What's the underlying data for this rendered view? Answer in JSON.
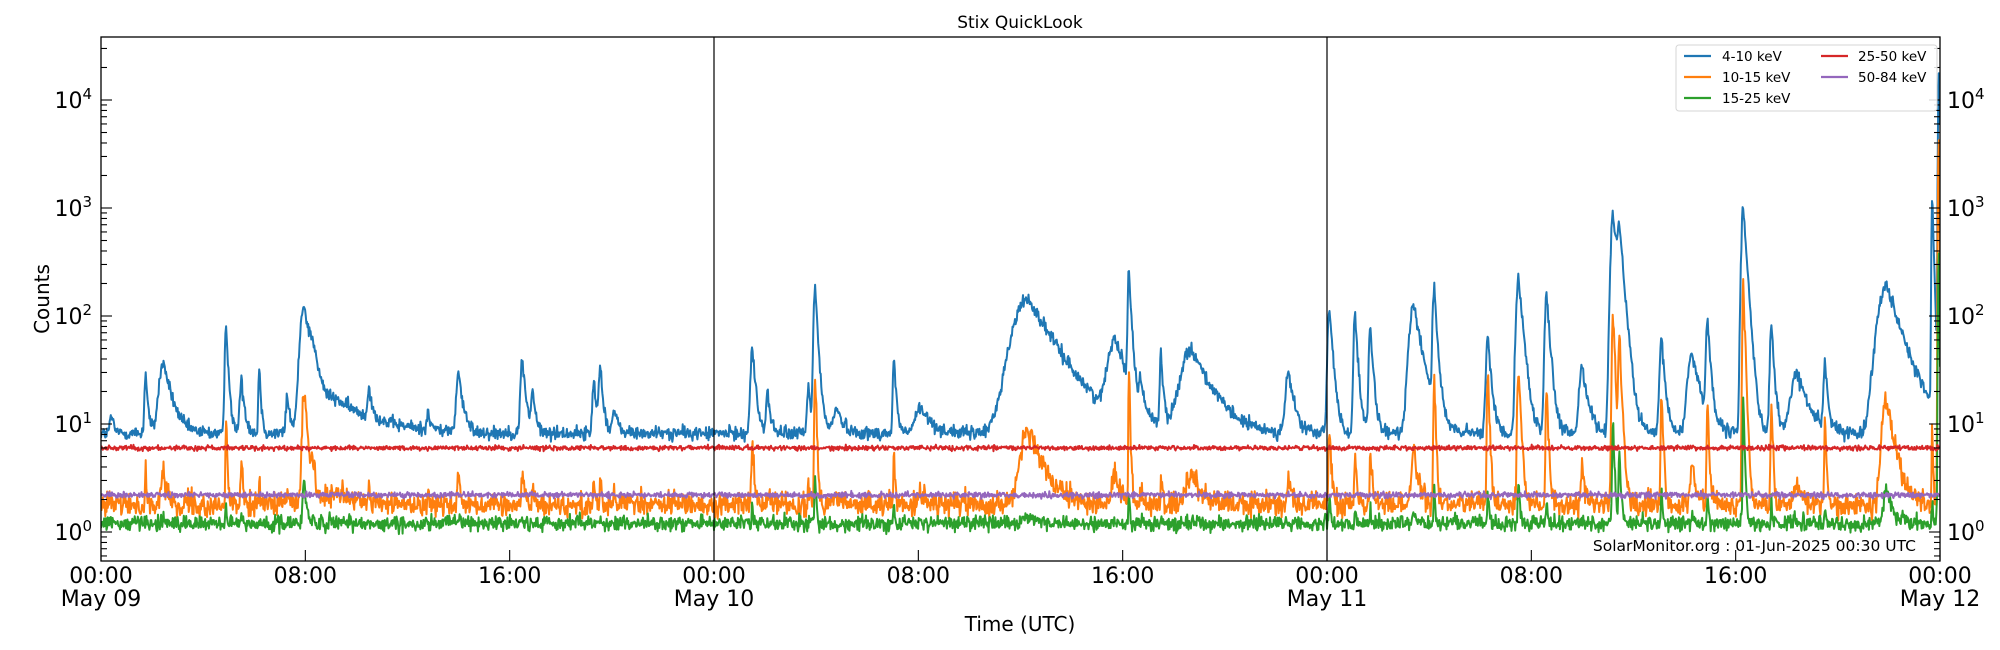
{
  "chart_data": {
    "type": "line",
    "title": "Stix QuickLook",
    "xlabel": "Time (UTC)",
    "ylabel": "Counts",
    "yscale": "log",
    "ylim": [
      0.54,
      38000
    ],
    "xlim_hours": [
      0,
      72
    ],
    "x_start": "May 09 00:00",
    "annotation": "SolarMonitor.org : 01-Jun-2025 00:30 UTC",
    "legend_position": "top-right",
    "xticks": [
      {
        "hour": 0,
        "time": "00:00",
        "date": "May 09"
      },
      {
        "hour": 8,
        "time": "08:00",
        "date": ""
      },
      {
        "hour": 16,
        "time": "16:00",
        "date": ""
      },
      {
        "hour": 24,
        "time": "00:00",
        "date": "May 10"
      },
      {
        "hour": 32,
        "time": "08:00",
        "date": ""
      },
      {
        "hour": 40,
        "time": "16:00",
        "date": ""
      },
      {
        "hour": 48,
        "time": "00:00",
        "date": "May 11"
      },
      {
        "hour": 56,
        "time": "08:00",
        "date": ""
      },
      {
        "hour": 64,
        "time": "16:00",
        "date": ""
      },
      {
        "hour": 72,
        "time": "00:00",
        "date": "May 12"
      }
    ],
    "day_boundaries_hours": [
      24,
      48
    ],
    "yticks": [
      {
        "value": 1,
        "base": "10",
        "exp": "0"
      },
      {
        "value": 10,
        "base": "10",
        "exp": "1"
      },
      {
        "value": 100,
        "base": "10",
        "exp": "2"
      },
      {
        "value": 1000,
        "base": "10",
        "exp": "3"
      },
      {
        "value": 10000,
        "base": "10",
        "exp": "4"
      }
    ],
    "series": [
      {
        "key": "b",
        "name": "4-10 keV",
        "color": "#1f77b4",
        "baseline": 8.2,
        "noise": 0.07
      },
      {
        "key": "o",
        "name": "10-15 keV",
        "color": "#ff7f0e",
        "baseline": 1.8,
        "noise": 0.12
      },
      {
        "key": "g",
        "name": "15-25 keV",
        "color": "#2ca02c",
        "baseline": 1.2,
        "noise": 0.08
      },
      {
        "key": "r",
        "name": "25-50 keV",
        "color": "#d62728",
        "baseline": 6.0,
        "noise": 0.025
      },
      {
        "key": "p",
        "name": "50-84 keV",
        "color": "#9467bd",
        "baseline": 2.2,
        "noise": 0.03
      }
    ],
    "events": [
      {
        "t": 0.4,
        "w": 0.1,
        "b": 12,
        "o": 2.2,
        "g": 1.2
      },
      {
        "t": 1.75,
        "w": 0.08,
        "b": 30,
        "o": 4,
        "g": 1.3
      },
      {
        "t": 2.45,
        "w": 0.3,
        "b": 37,
        "o": 3.5,
        "g": 1.3
      },
      {
        "t": 4.9,
        "w": 0.08,
        "b": 85,
        "o": 10,
        "g": 1.8
      },
      {
        "t": 5.5,
        "w": 0.12,
        "b": 25,
        "o": 5,
        "g": 1.5
      },
      {
        "t": 6.2,
        "w": 0.06,
        "b": 35,
        "o": 3.3,
        "g": 1.2
      },
      {
        "t": 7.3,
        "w": 0.1,
        "b": 18,
        "o": 2.6,
        "g": 1.2
      },
      {
        "t": 7.95,
        "w": 0.25,
        "b": 130,
        "o": 20,
        "g": 3
      },
      {
        "t": 8.3,
        "w": 0.2,
        "b": 28,
        "o": 3.5,
        "g": 1.3
      },
      {
        "t": 9.3,
        "w": 1.5,
        "b": 16,
        "o": 2.2,
        "g": 1.2
      },
      {
        "t": 10.5,
        "w": 0.1,
        "b": 20,
        "o": 2.6,
        "g": 1.2
      },
      {
        "t": 12.8,
        "w": 0.1,
        "b": 12,
        "o": 2.2,
        "g": 1.2
      },
      {
        "t": 14.0,
        "w": 0.15,
        "b": 30,
        "o": 3.5,
        "g": 1.3
      },
      {
        "t": 16.5,
        "w": 0.12,
        "b": 40,
        "o": 4,
        "g": 1.3
      },
      {
        "t": 16.9,
        "w": 0.1,
        "b": 20,
        "o": 2.8,
        "g": 1.2
      },
      {
        "t": 19.3,
        "w": 0.1,
        "b": 25,
        "o": 3,
        "g": 1.2
      },
      {
        "t": 19.55,
        "w": 0.1,
        "b": 35,
        "o": 3.2,
        "g": 1.3
      },
      {
        "t": 20.1,
        "w": 0.15,
        "b": 13,
        "o": 2.2,
        "g": 1.2
      },
      {
        "t": 25.5,
        "w": 0.12,
        "b": 50,
        "o": 7,
        "g": 1.8
      },
      {
        "t": 26.1,
        "w": 0.1,
        "b": 20,
        "o": 2.5,
        "g": 1.2
      },
      {
        "t": 27.7,
        "w": 0.1,
        "b": 22,
        "o": 3,
        "g": 1.3
      },
      {
        "t": 27.96,
        "w": 0.1,
        "b": 180,
        "o": 30,
        "g": 3.5
      },
      {
        "t": 28.8,
        "w": 0.25,
        "b": 14,
        "o": 2.3,
        "g": 1.2
      },
      {
        "t": 31.05,
        "w": 0.08,
        "b": 40,
        "o": 5,
        "g": 2
      },
      {
        "t": 32.1,
        "w": 0.4,
        "b": 14,
        "o": 2.3,
        "g": 1.2
      },
      {
        "t": 36.3,
        "w": 1.0,
        "b": 145,
        "o": 9,
        "g": 1.4
      },
      {
        "t": 39.7,
        "w": 0.45,
        "b": 60,
        "o": 3.5,
        "g": 1.3
      },
      {
        "t": 40.25,
        "w": 0.08,
        "b": 260,
        "o": 30,
        "g": 2.5
      },
      {
        "t": 40.7,
        "w": 0.1,
        "b": 20,
        "o": 2.5,
        "g": 1.2
      },
      {
        "t": 41.5,
        "w": 0.08,
        "b": 45,
        "o": 3,
        "g": 1.2
      },
      {
        "t": 42.7,
        "w": 0.7,
        "b": 50,
        "o": 3.5,
        "g": 1.3
      },
      {
        "t": 46.5,
        "w": 0.2,
        "b": 30,
        "o": 3,
        "g": 1.2
      },
      {
        "t": 48.1,
        "w": 0.12,
        "b": 120,
        "o": 10,
        "g": 2
      },
      {
        "t": 49.1,
        "w": 0.1,
        "b": 100,
        "o": 6,
        "g": 1.6
      },
      {
        "t": 49.7,
        "w": 0.1,
        "b": 80,
        "o": 6,
        "g": 1.6
      },
      {
        "t": 51.4,
        "w": 0.3,
        "b": 130,
        "o": 6,
        "g": 1.5
      },
      {
        "t": 52.2,
        "w": 0.1,
        "b": 180,
        "o": 28,
        "g": 2.5
      },
      {
        "t": 54.3,
        "w": 0.12,
        "b": 65,
        "o": 28,
        "g": 2.5
      },
      {
        "t": 55.5,
        "w": 0.15,
        "b": 240,
        "o": 38,
        "g": 3
      },
      {
        "t": 56.6,
        "w": 0.12,
        "b": 160,
        "o": 22,
        "g": 2
      },
      {
        "t": 58.0,
        "w": 0.2,
        "b": 35,
        "o": 4,
        "g": 1.4
      },
      {
        "t": 59.2,
        "w": 0.15,
        "b": 900,
        "o": 100,
        "g": 10
      },
      {
        "t": 59.45,
        "w": 0.15,
        "b": 520,
        "o": 60,
        "g": 6
      },
      {
        "t": 61.1,
        "w": 0.12,
        "b": 60,
        "o": 18,
        "g": 2.5
      },
      {
        "t": 62.3,
        "w": 0.3,
        "b": 45,
        "o": 4,
        "g": 1.4
      },
      {
        "t": 62.9,
        "w": 0.1,
        "b": 90,
        "o": 18,
        "g": 2.5
      },
      {
        "t": 64.3,
        "w": 0.12,
        "b": 1050,
        "o": 200,
        "g": 20
      },
      {
        "t": 65.4,
        "w": 0.1,
        "b": 80,
        "o": 15,
        "g": 2
      },
      {
        "t": 66.4,
        "w": 0.4,
        "b": 30,
        "o": 3,
        "g": 1.3
      },
      {
        "t": 67.5,
        "w": 0.1,
        "b": 35,
        "o": 10,
        "g": 1.6
      },
      {
        "t": 69.9,
        "w": 0.55,
        "b": 200,
        "o": 18,
        "g": 2.5
      },
      {
        "t": 71.7,
        "w": 0.05,
        "b": 1300,
        "o": 12,
        "g": 2
      },
      {
        "t": 71.95,
        "w": 0.04,
        "b": 20000,
        "o": 5000,
        "g": 400
      }
    ]
  }
}
